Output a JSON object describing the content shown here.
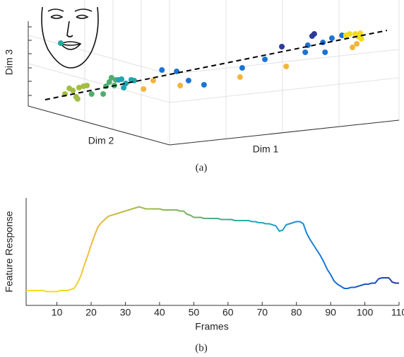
{
  "chart_data": [
    {
      "type": "scatter",
      "xlabel": "Dim 1",
      "ylabel": "Dim 2",
      "zlabel": "Dim 3",
      "caption": "(a)",
      "xlim": [
        0,
        100
      ],
      "ylim": [
        0,
        100
      ],
      "series": [
        {
          "color": "#a3bd45",
          "x": [
            10.2,
            11.4,
            12.4,
            13.3,
            14.1,
            15.3,
            16.3,
            13.7
          ],
          "values": [
            20.8,
            26.9,
            24.6,
            17.7,
            27.7,
            29.2,
            30.0,
            15.4
          ]
        },
        {
          "color": "#4fae6e",
          "x": [
            17.6,
            20.8,
            21.6,
            22.5,
            23.1,
            23.9,
            24.3
          ],
          "values": [
            20.8,
            20.8,
            29.2,
            33.8,
            38.5,
            30.0,
            36.2
          ]
        },
        {
          "color": "#20a5b0",
          "x": [
            25.1,
            25.9,
            27.1,
            26.5,
            28.6,
            29.4
          ],
          "values": [
            36.2,
            36.9,
            32.3,
            27.7,
            36.2,
            35.4
          ]
        },
        {
          "color": "#f2b43c",
          "x": [
            32.0,
            34.7,
            42.2,
            58.8,
            71.6,
            90.0,
            91.2
          ],
          "values": [
            26.2,
            35.4,
            30.0,
            39.2,
            50.8,
            71.5,
            75.4
          ]
        },
        {
          "color": "#1a74d4",
          "x": [
            37.1,
            41.2,
            44.5,
            48.8,
            59.4,
            65.7,
            76.9,
            77.6,
            81.8,
            82.4,
            84.3,
            87.1
          ],
          "values": [
            46.9,
            45.4,
            35.4,
            30.8,
            49.2,
            58.5,
            66.2,
            73.8,
            76.9,
            66.2,
            81.5,
            84.6
          ]
        },
        {
          "color": "#2d3a9c",
          "x": [
            70.4,
            79.4,
            78.8
          ],
          "values": [
            72.3,
            86.2,
            83.8
          ]
        },
        {
          "color": "#f2dc1c",
          "x": [
            88.2,
            89.2,
            90.8,
            92.2,
            91.6,
            92.5
          ],
          "values": [
            84.6,
            86.2,
            86.2,
            86.9,
            83.1,
            80.8
          ]
        }
      ],
      "trend": {
        "x": [
          4.7,
          99.6
        ],
        "values": [
          14.6,
          90.0
        ]
      }
    },
    {
      "type": "line",
      "xlabel": "Frames",
      "ylabel": "Feature Response",
      "caption": "(b)",
      "xlim": [
        1,
        110
      ],
      "xticks": [
        10,
        20,
        30,
        40,
        50,
        60,
        70,
        80,
        90,
        100,
        110
      ],
      "ylim": [
        0,
        1
      ],
      "x": [
        1,
        2,
        3,
        4,
        5,
        6,
        7,
        8,
        9,
        10,
        11,
        12,
        13,
        14,
        15,
        16,
        17,
        18,
        19,
        20,
        21,
        22,
        23,
        24,
        25,
        26,
        27,
        28,
        29,
        30,
        31,
        32,
        33,
        34,
        35,
        36,
        37,
        38,
        39,
        40,
        41,
        42,
        43,
        44,
        45,
        46,
        47,
        48,
        49,
        50,
        51,
        52,
        53,
        54,
        55,
        56,
        57,
        58,
        59,
        60,
        61,
        62,
        63,
        64,
        65,
        66,
        67,
        68,
        69,
        70,
        71,
        72,
        73,
        74,
        75,
        76,
        77,
        78,
        79,
        80,
        81,
        82,
        83,
        84,
        85,
        86,
        87,
        88,
        89,
        90,
        91,
        92,
        93,
        94,
        95,
        96,
        97,
        98,
        99,
        100,
        101,
        102,
        103,
        104,
        105,
        106,
        107,
        108,
        109,
        110
      ],
      "values": [
        0.14,
        0.14,
        0.14,
        0.14,
        0.14,
        0.14,
        0.13,
        0.13,
        0.13,
        0.13,
        0.14,
        0.14,
        0.14,
        0.15,
        0.16,
        0.21,
        0.28,
        0.38,
        0.47,
        0.57,
        0.66,
        0.74,
        0.78,
        0.81,
        0.84,
        0.85,
        0.86,
        0.87,
        0.88,
        0.89,
        0.9,
        0.91,
        0.92,
        0.93,
        0.92,
        0.91,
        0.91,
        0.91,
        0.91,
        0.91,
        0.9,
        0.9,
        0.9,
        0.9,
        0.9,
        0.89,
        0.89,
        0.86,
        0.85,
        0.83,
        0.83,
        0.83,
        0.82,
        0.82,
        0.82,
        0.82,
        0.82,
        0.81,
        0.81,
        0.81,
        0.81,
        0.8,
        0.8,
        0.8,
        0.8,
        0.8,
        0.79,
        0.79,
        0.78,
        0.78,
        0.77,
        0.77,
        0.76,
        0.75,
        0.7,
        0.71,
        0.76,
        0.77,
        0.78,
        0.79,
        0.79,
        0.77,
        0.68,
        0.62,
        0.57,
        0.52,
        0.47,
        0.41,
        0.34,
        0.29,
        0.23,
        0.2,
        0.18,
        0.16,
        0.16,
        0.17,
        0.17,
        0.18,
        0.19,
        0.2,
        0.2,
        0.21,
        0.21,
        0.25,
        0.26,
        0.26,
        0.26,
        0.22,
        0.21,
        0.21
      ]
    }
  ]
}
